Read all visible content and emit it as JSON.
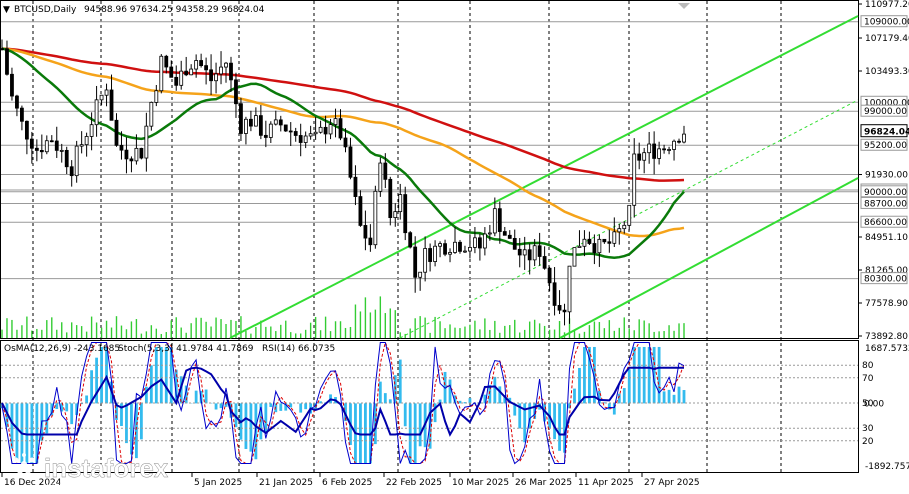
{
  "header": {
    "symbol": "BTCUSD,Daily",
    "ohlc": "94588.96 97634.25 94358.29 96824.04"
  },
  "price_axis": {
    "ticks": [
      "110977.20",
      "107179.40",
      "103493.30",
      "91930.00",
      "84951.10",
      "81265.00",
      "77578.90",
      "73892.80"
    ],
    "level_labels": [
      "109000.00",
      "100000.00",
      "99000.00",
      "95200.00",
      "90200.00",
      "90000.00",
      "88700.00",
      "86600.00",
      "80300.00"
    ],
    "current_price": "96824.04"
  },
  "indicator_header": {
    "osma": "OsMA(12,26,9) -243.1685",
    "stoch": "Stoch(5,3,3) 41.9784 41.7869",
    "rsi": "RSI(14) 66.0735"
  },
  "indicator_axis": {
    "top": "1687.5732",
    "bottom": "-1892.7573",
    "levels": [
      "80",
      "70",
      "50",
      "30",
      "20"
    ],
    "zero": "0.00"
  },
  "time_axis": [
    "16 Dec 2024",
    "5 Jan 2025",
    "21 Jan 2025",
    "6 Feb 2025",
    "22 Feb 2025",
    "10 Mar 2025",
    "26 Mar 2025",
    "11 Apr 2025",
    "27 Apr 2025"
  ],
  "watermark": {
    "brand": "instaforex",
    "tagline": "Instant Forex Trading"
  },
  "colors": {
    "bull_candle": "#000000",
    "bear_candle": "#000000",
    "ma_fast": "#0a7a0a",
    "ma_mid": "#f5a31a",
    "ma_slow": "#d01010",
    "channel": "#33dd33",
    "volume": "#33cc33",
    "osma": "#33bbee",
    "stoch_main": "#0000cc",
    "stoch_signal": "#dd0000",
    "rsi": "#0000aa"
  },
  "chart_data": {
    "type": "candlestick",
    "title": "BTCUSD,Daily",
    "x_range": [
      "2024-12-16",
      "2025-05-02"
    ],
    "ylim": [
      73892.8,
      110977.2
    ],
    "horizontal_levels": [
      109000,
      100000,
      99000,
      95200,
      91930,
      90200,
      90000,
      88700,
      86600,
      80300
    ],
    "last": {
      "open": 94588.96,
      "high": 97634.25,
      "low": 94358.29,
      "close": 96824.04
    },
    "close_series": [
      {
        "date": "2024-12-16",
        "close": 106000
      },
      {
        "date": "2024-12-18",
        "close": 100500
      },
      {
        "date": "2024-12-20",
        "close": 97500
      },
      {
        "date": "2024-12-23",
        "close": 94800
      },
      {
        "date": "2024-12-26",
        "close": 96000
      },
      {
        "date": "2024-12-30",
        "close": 92800
      },
      {
        "date": "2025-01-03",
        "close": 98000
      },
      {
        "date": "2025-01-06",
        "close": 102000
      },
      {
        "date": "2025-01-08",
        "close": 95000
      },
      {
        "date": "2025-01-10",
        "close": 94500
      },
      {
        "date": "2025-01-13",
        "close": 94500
      },
      {
        "date": "2025-01-15",
        "close": 100000
      },
      {
        "date": "2025-01-17",
        "close": 104500
      },
      {
        "date": "2025-01-20",
        "close": 102000
      },
      {
        "date": "2025-01-22",
        "close": 104000
      },
      {
        "date": "2025-01-24",
        "close": 104800
      },
      {
        "date": "2025-01-27",
        "close": 102500
      },
      {
        "date": "2025-01-30",
        "close": 104500
      },
      {
        "date": "2025-02-02",
        "close": 97500
      },
      {
        "date": "2025-02-04",
        "close": 98000
      },
      {
        "date": "2025-02-07",
        "close": 96500
      },
      {
        "date": "2025-02-10",
        "close": 97500
      },
      {
        "date": "2025-02-13",
        "close": 96500
      },
      {
        "date": "2025-02-17",
        "close": 95800
      },
      {
        "date": "2025-02-20",
        "close": 98000
      },
      {
        "date": "2025-02-22",
        "close": 96500
      },
      {
        "date": "2025-02-24",
        "close": 91500
      },
      {
        "date": "2025-02-26",
        "close": 86000
      },
      {
        "date": "2025-02-28",
        "close": 84200
      },
      {
        "date": "2025-03-02",
        "close": 94200
      },
      {
        "date": "2025-03-04",
        "close": 87200
      },
      {
        "date": "2025-03-06",
        "close": 89500
      },
      {
        "date": "2025-03-09",
        "close": 80600
      },
      {
        "date": "2025-03-11",
        "close": 82900
      },
      {
        "date": "2025-03-14",
        "close": 84000
      },
      {
        "date": "2025-03-17",
        "close": 84300
      },
      {
        "date": "2025-03-20",
        "close": 84200
      },
      {
        "date": "2025-03-22",
        "close": 83800
      },
      {
        "date": "2025-03-25",
        "close": 87500
      },
      {
        "date": "2025-03-28",
        "close": 84300
      },
      {
        "date": "2025-03-31",
        "close": 82500
      },
      {
        "date": "2025-04-03",
        "close": 83500
      },
      {
        "date": "2025-04-06",
        "close": 78400
      },
      {
        "date": "2025-04-08",
        "close": 76300
      },
      {
        "date": "2025-04-09",
        "close": 82500
      },
      {
        "date": "2025-04-12",
        "close": 85300
      },
      {
        "date": "2025-04-15",
        "close": 83700
      },
      {
        "date": "2025-04-18",
        "close": 84500
      },
      {
        "date": "2025-04-21",
        "close": 87500
      },
      {
        "date": "2025-04-22",
        "close": 93500
      },
      {
        "date": "2025-04-25",
        "close": 94600
      },
      {
        "date": "2025-04-28",
        "close": 95000
      },
      {
        "date": "2025-05-01",
        "close": 96500
      },
      {
        "date": "2025-05-02",
        "close": 96824
      }
    ],
    "osma_range": [
      -1892.7573,
      1687.5732
    ],
    "stoch_rsi_levels": [
      20,
      30,
      50,
      70,
      80
    ]
  }
}
